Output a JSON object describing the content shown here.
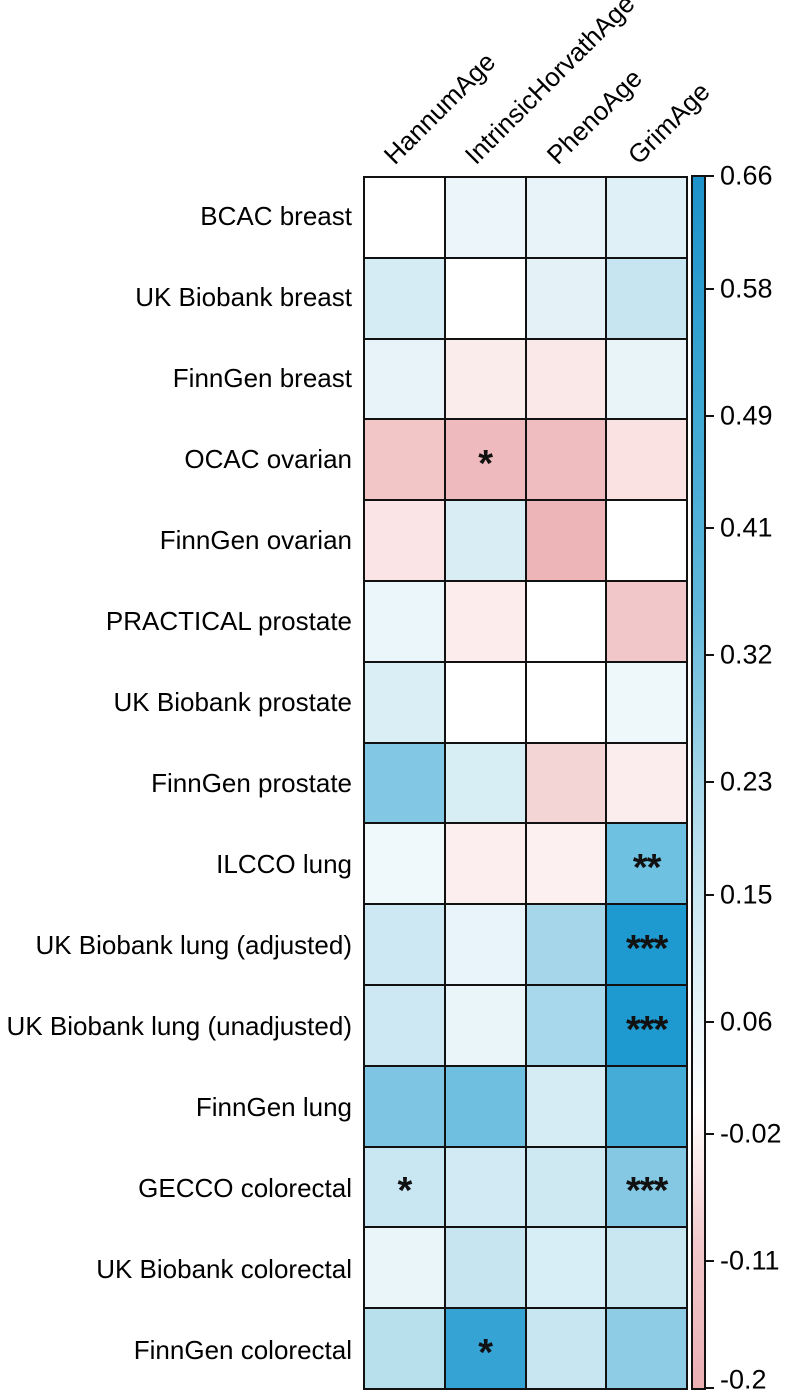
{
  "chart_data": {
    "type": "heatmap",
    "title": "",
    "x_labels": [
      "HannumAge",
      "IntrinsicHorvathAge",
      "PhenoAge",
      "GrimAge"
    ],
    "y_labels": [
      "BCAC breast",
      "UK Biobank breast",
      "FinnGen breast",
      "OCAC ovarian",
      "FinnGen ovarian",
      "PRACTICAL prostate",
      "UK Biobank prostate",
      "FinnGen prostate",
      "ILCCO lung",
      "UK Biobank lung (adjusted)",
      "UK Biobank lung (unadjusted)",
      "FinnGen lung",
      "GECCO colorectal",
      "UK Biobank colorectal",
      "FinnGen colorectal"
    ],
    "values": [
      [
        0.0,
        0.06,
        0.07,
        0.09
      ],
      [
        0.12,
        0.0,
        0.08,
        0.15
      ],
      [
        0.07,
        -0.04,
        -0.05,
        0.06
      ],
      [
        -0.12,
        -0.16,
        -0.15,
        -0.06
      ],
      [
        -0.06,
        0.12,
        -0.18,
        0.0
      ],
      [
        0.06,
        -0.04,
        0.0,
        -0.12
      ],
      [
        0.11,
        0.0,
        0.0,
        0.05
      ],
      [
        0.29,
        0.11,
        -0.09,
        -0.04
      ],
      [
        0.05,
        -0.03,
        -0.03,
        0.34
      ],
      [
        0.14,
        0.07,
        0.23,
        0.65
      ],
      [
        0.14,
        0.06,
        0.22,
        0.65
      ],
      [
        0.3,
        0.33,
        0.12,
        0.48
      ],
      [
        0.15,
        0.13,
        0.13,
        0.29
      ],
      [
        0.06,
        0.15,
        0.11,
        0.15
      ],
      [
        0.18,
        0.55,
        0.15,
        0.27
      ]
    ],
    "significance": [
      [
        "",
        "",
        "",
        ""
      ],
      [
        "",
        "",
        "",
        ""
      ],
      [
        "",
        "",
        "",
        ""
      ],
      [
        "",
        "*",
        "",
        ""
      ],
      [
        "",
        "",
        "",
        ""
      ],
      [
        "",
        "",
        "",
        ""
      ],
      [
        "",
        "",
        "",
        ""
      ],
      [
        "",
        "",
        "",
        ""
      ],
      [
        "",
        "",
        "",
        "**"
      ],
      [
        "",
        "",
        "",
        "***"
      ],
      [
        "",
        "",
        "",
        "***"
      ],
      [
        "",
        "",
        "",
        ""
      ],
      [
        "*",
        "",
        "",
        "***"
      ],
      [
        "",
        "",
        "",
        ""
      ],
      [
        "",
        "*",
        "",
        ""
      ]
    ],
    "cell_colors": [
      [
        "#ffffff",
        "#ebf5fa",
        "#e7f3f9",
        "#e0f0f7"
      ],
      [
        "#d5ecf4",
        "#ffffff",
        "#e4f2f8",
        "#c6e5f0"
      ],
      [
        "#e7f3f9",
        "#fbecec",
        "#fae8e8",
        "#e9f4f9"
      ],
      [
        "#f2c5c7",
        "#eebabd",
        "#efbdc0",
        "#fae2e3"
      ],
      [
        "#fae4e5",
        "#d8edf4",
        "#edb5b8",
        "#ffffff"
      ],
      [
        "#eaf6fa",
        "#fcecec",
        "#ffffff",
        "#f1c7c9"
      ],
      [
        "#daeef5",
        "#ffffff",
        "#ffffff",
        "#eef7fa"
      ],
      [
        "#82c7e3",
        "#d8eef5",
        "#f4d5d6",
        "#fbeced"
      ],
      [
        "#eff8fb",
        "#fceeee",
        "#fcf0f0",
        "#6ec1e0"
      ],
      [
        "#cde8f2",
        "#e8f4f9",
        "#a5d6ea",
        "#1e9ad0"
      ],
      [
        "#cde8f2",
        "#eaf5f9",
        "#a8d8eb",
        "#1e9ad0"
      ],
      [
        "#7dc5e2",
        "#6fc0e0",
        "#d5ecf4",
        "#44acd6"
      ],
      [
        "#c9e7f2",
        "#d2eaf3",
        "#cfe9f2",
        "#84c8e3"
      ],
      [
        "#eaf5f9",
        "#c6e5f0",
        "#d8eef6",
        "#c9e7f1"
      ],
      [
        "#b8dfec",
        "#35a3d3",
        "#c8e6f1",
        "#8ecbe4"
      ]
    ],
    "colorbar": {
      "position": "right",
      "min": -0.2,
      "max": 0.66,
      "tick_labels": [
        "0.66",
        "0.58",
        "0.49",
        "0.41",
        "0.32",
        "0.23",
        "0.15",
        "0.06",
        "-0.02",
        "-0.11",
        "-0.2"
      ],
      "tick_values": [
        0.66,
        0.58,
        0.49,
        0.41,
        0.32,
        0.23,
        0.15,
        0.06,
        -0.02,
        -0.11,
        -0.2
      ],
      "gradient": [
        {
          "pos": 0.0,
          "color": "#1d92ca"
        },
        {
          "pos": 0.19,
          "color": "#3ea8d3"
        },
        {
          "pos": 0.35,
          "color": "#5fb7da"
        },
        {
          "pos": 0.5,
          "color": "#a6d7ea"
        },
        {
          "pos": 0.64,
          "color": "#d9eef5"
        },
        {
          "pos": 0.767,
          "color": "#ffffff"
        },
        {
          "pos": 0.88,
          "color": "#f2c9cc"
        },
        {
          "pos": 1.0,
          "color": "#eaafb3"
        }
      ]
    },
    "grid_border_color": "#111111",
    "star_color": "#111111",
    "grid_on": true,
    "legend_position": "right"
  }
}
